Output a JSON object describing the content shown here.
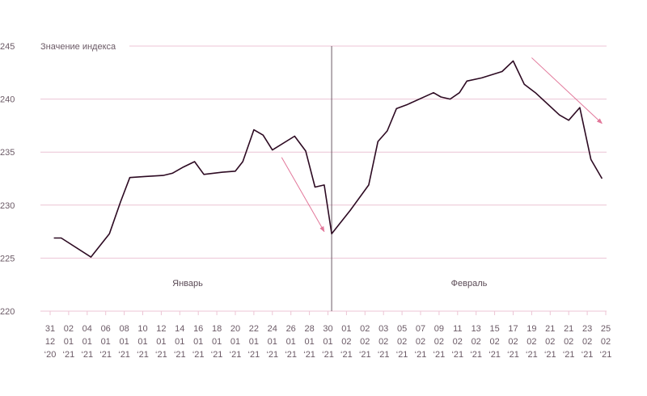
{
  "chart_data": {
    "type": "line",
    "ylabel": "Значение индекса",
    "ylim": [
      220,
      245
    ],
    "yticks": [
      245,
      240,
      235,
      230,
      225,
      220
    ],
    "month_labels": [
      "Январь",
      "Февраль"
    ],
    "x_ticks": [
      [
        "31",
        "12",
        "‘20"
      ],
      [
        "02",
        "01",
        "‘21"
      ],
      [
        "04",
        "01",
        "‘21"
      ],
      [
        "06",
        "01",
        "‘21"
      ],
      [
        "08",
        "01",
        "‘21"
      ],
      [
        "10",
        "01",
        "‘21"
      ],
      [
        "12",
        "01",
        "‘21"
      ],
      [
        "14",
        "01",
        "‘21"
      ],
      [
        "16",
        "01",
        "‘21"
      ],
      [
        "18",
        "01",
        "‘21"
      ],
      [
        "20",
        "01",
        "‘21"
      ],
      [
        "22",
        "01",
        "‘21"
      ],
      [
        "24",
        "01",
        "‘21"
      ],
      [
        "26",
        "01",
        "‘21"
      ],
      [
        "28",
        "01",
        "‘21"
      ],
      [
        "30",
        "01",
        "‘21"
      ],
      [
        "01",
        "02",
        "‘21"
      ],
      [
        "02",
        "02",
        "‘21"
      ],
      [
        "03",
        "02",
        "‘21"
      ],
      [
        "05",
        "02",
        "‘21"
      ],
      [
        "07",
        "02",
        "‘21"
      ],
      [
        "09",
        "02",
        "‘21"
      ],
      [
        "11",
        "02",
        "‘21"
      ],
      [
        "13",
        "02",
        "‘21"
      ],
      [
        "15",
        "02",
        "‘21"
      ],
      [
        "17",
        "02",
        "‘21"
      ],
      [
        "19",
        "02",
        "‘21"
      ],
      [
        "21",
        "02",
        "‘21"
      ],
      [
        "21",
        "02",
        "‘21"
      ],
      [
        "23",
        "02",
        "‘21"
      ],
      [
        "25",
        "02",
        "‘21"
      ]
    ],
    "series": [
      {
        "values": [
          [
            0.2,
            226.9
          ],
          [
            0.6,
            226.9
          ],
          [
            2.2,
            225.1
          ],
          [
            2.7,
            226.2
          ],
          [
            3.2,
            227.3
          ],
          [
            3.8,
            230.3
          ],
          [
            4.3,
            232.6
          ],
          [
            5.1,
            232.7
          ],
          [
            6.1,
            232.8
          ],
          [
            6.6,
            233.0
          ],
          [
            7.2,
            233.6
          ],
          [
            7.8,
            234.1
          ],
          [
            8.3,
            232.9
          ],
          [
            9.3,
            233.1
          ],
          [
            10.0,
            233.2
          ],
          [
            10.4,
            234.1
          ],
          [
            11.0,
            237.1
          ],
          [
            11.5,
            236.6
          ],
          [
            12.0,
            235.2
          ],
          [
            13.2,
            236.5
          ],
          [
            13.8,
            235.1
          ],
          [
            14.3,
            231.7
          ],
          [
            14.8,
            231.9
          ],
          [
            15.2,
            227.3
          ],
          [
            16.2,
            229.5
          ],
          [
            17.2,
            231.9
          ],
          [
            17.7,
            236.0
          ],
          [
            18.2,
            237.0
          ],
          [
            18.7,
            239.1
          ],
          [
            19.3,
            239.5
          ],
          [
            20.7,
            240.6
          ],
          [
            21.1,
            240.2
          ],
          [
            21.6,
            240.0
          ],
          [
            22.1,
            240.6
          ],
          [
            22.5,
            241.7
          ],
          [
            23.3,
            242.0
          ],
          [
            24.4,
            242.6
          ],
          [
            25.0,
            243.6
          ],
          [
            25.6,
            241.4
          ],
          [
            26.2,
            240.6
          ],
          [
            27.5,
            238.5
          ],
          [
            28.0,
            238.0
          ],
          [
            28.6,
            239.2
          ],
          [
            29.2,
            234.3
          ],
          [
            29.8,
            232.5
          ]
        ]
      }
    ],
    "annotations": [
      {
        "type": "arrow",
        "from": [
          12.5,
          234.5
        ],
        "to": [
          14.8,
          227.5
        ]
      },
      {
        "type": "arrow",
        "from": [
          26.0,
          243.9
        ],
        "to": [
          29.8,
          237.7
        ]
      }
    ],
    "divider_x": 15.2,
    "grid": true,
    "colors": {
      "line": "#2d0a22",
      "grid": "#ecc4d4",
      "arrow": "#e2779a",
      "divider": "#6b5a66",
      "axis_text": "#6b5a66"
    }
  }
}
